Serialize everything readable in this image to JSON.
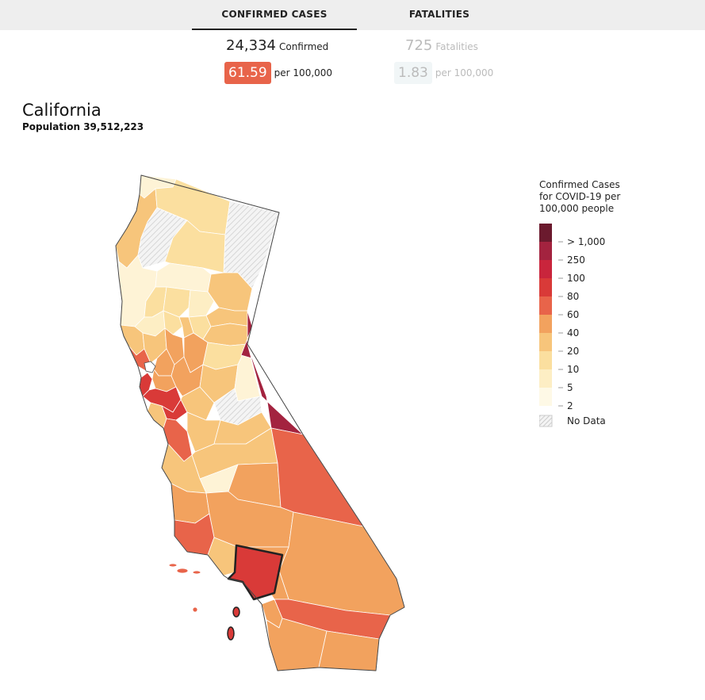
{
  "tabs": [
    {
      "label": "CONFIRMED CASES",
      "active": true
    },
    {
      "label": "FATALITIES",
      "active": false
    }
  ],
  "confirmed": {
    "count": "24,334",
    "label": "Confirmed",
    "rate": "61.59",
    "rate_label": "per 100,000",
    "rate_color": "#e8644a"
  },
  "fatalities": {
    "count": "725",
    "label": "Fatalities",
    "rate": "1.83",
    "rate_label": "per 100,000"
  },
  "region": {
    "name": "California",
    "population": "Population 39,512,223"
  },
  "legend": {
    "title_lines": [
      "Confirmed Cases",
      "for COVID-19 per",
      "100,000 people"
    ],
    "bins": [
      {
        "label": "> 1,000",
        "color": "#6b1a2e"
      },
      {
        "label": "250",
        "color": "#a3233f"
      },
      {
        "label": "100",
        "color": "#c9253c"
      },
      {
        "label": "80",
        "color": "#d93a38"
      },
      {
        "label": "60",
        "color": "#e8644a"
      },
      {
        "label": "40",
        "color": "#f2a25e"
      },
      {
        "label": "20",
        "color": "#f7c57b"
      },
      {
        "label": "10",
        "color": "#fbdf9f"
      },
      {
        "label": "5",
        "color": "#fdeec4"
      },
      {
        "label": "2",
        "color": "#fef9e6"
      }
    ],
    "no_data_label": "No Data",
    "no_data_pattern": "hatched-grey"
  },
  "map": {
    "selected_region": "Los Angeles County",
    "highlight_stroke": "#222222"
  }
}
